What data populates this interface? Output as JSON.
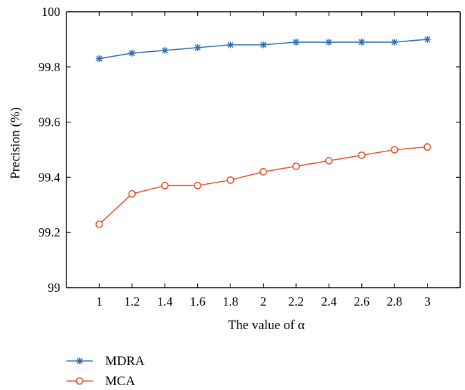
{
  "chart_data": {
    "type": "line",
    "title": "",
    "xlabel": "The value of α",
    "ylabel": "Precision (%)",
    "x": [
      1,
      1.2,
      1.4,
      1.6,
      1.8,
      2,
      2.2,
      2.4,
      2.6,
      2.8,
      3
    ],
    "x_tick_labels": [
      "1",
      "1.2",
      "1.4",
      "1.6",
      "1.8",
      "2",
      "2.2",
      "2.4",
      "2.6",
      "2.8",
      "3"
    ],
    "y_ticks": [
      99,
      99.2,
      99.4,
      99.6,
      99.8,
      100
    ],
    "y_tick_labels": [
      "99",
      "99.2",
      "99.4",
      "99.6",
      "99.8",
      "100"
    ],
    "ylim": [
      99,
      100
    ],
    "xlim": [
      0.8,
      3.2
    ],
    "grid": false,
    "legend_position": "bottom-left",
    "series": [
      {
        "name": "MDRA",
        "color": "#2f6db5",
        "marker": "asterisk",
        "values": [
          99.83,
          99.85,
          99.86,
          99.87,
          99.88,
          99.88,
          99.89,
          99.89,
          99.89,
          99.89,
          99.9
        ]
      },
      {
        "name": "MCA",
        "color": "#e0542a",
        "marker": "circle",
        "values": [
          99.23,
          99.34,
          99.37,
          99.37,
          99.39,
          99.42,
          99.44,
          99.46,
          99.48,
          99.5,
          99.51
        ]
      }
    ]
  }
}
